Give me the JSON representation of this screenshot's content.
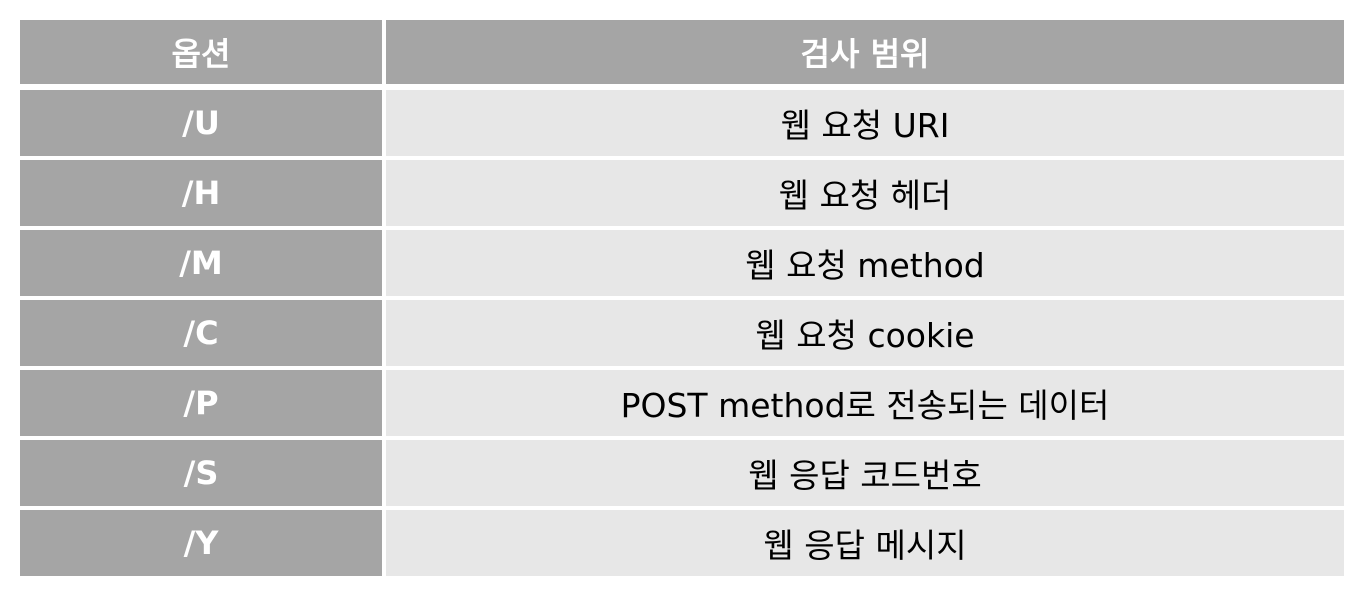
{
  "header": {
    "option": "옵션",
    "scope": "검사 범위"
  },
  "rows": [
    {
      "option": "/U",
      "scope": "웹 요청 URI"
    },
    {
      "option": "/H",
      "scope": "웹 요청 헤더"
    },
    {
      "option": "/M",
      "scope": "웹 요청 method"
    },
    {
      "option": "/C",
      "scope": "웹 요청 cookie"
    },
    {
      "option": "/P",
      "scope": "POST method로 전송되는 데이터"
    },
    {
      "option": "/S",
      "scope": "웹 응답 코드번호"
    },
    {
      "option": "/Y",
      "scope": "웹 응답 메시지"
    }
  ]
}
